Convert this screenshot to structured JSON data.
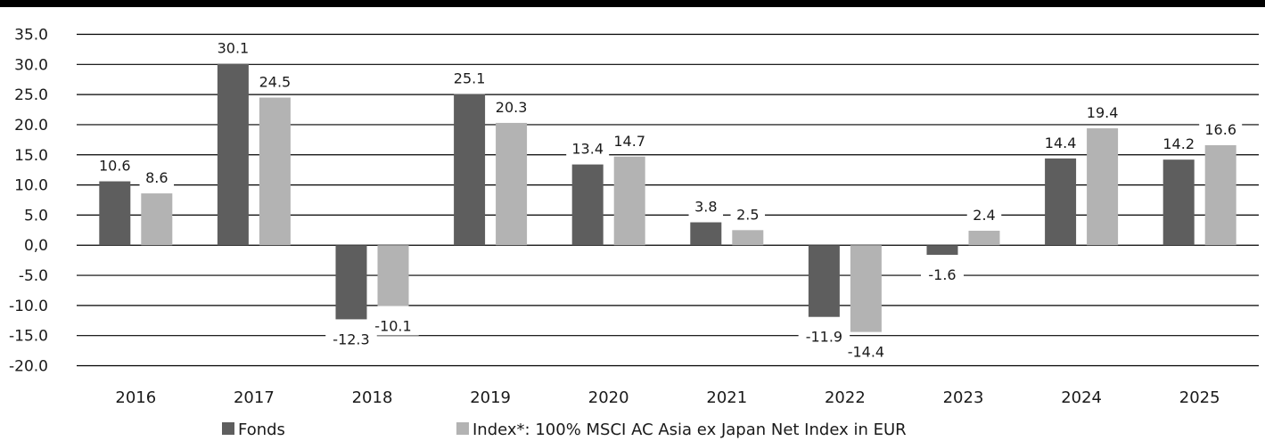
{
  "chart_data": {
    "type": "bar",
    "categories": [
      "2016",
      "2017",
      "2018",
      "2019",
      "2020",
      "2021",
      "2022",
      "2023",
      "2024",
      "2025"
    ],
    "series": [
      {
        "name": "Fonds",
        "color": "#5e5e5e",
        "values": [
          10.6,
          30.1,
          -12.3,
          25.1,
          13.4,
          3.8,
          -11.9,
          -1.6,
          14.4,
          14.2
        ]
      },
      {
        "name": "Index*: 100% MSCI AC Asia ex Japan Net Index in EUR",
        "color": "#b3b3b3",
        "values": [
          8.6,
          24.5,
          -10.1,
          20.3,
          14.7,
          2.5,
          -14.4,
          2.4,
          19.4,
          16.6
        ]
      }
    ],
    "y_ticks": [
      "35.0",
      "30.0",
      "25.0",
      "20.0",
      "15.0",
      "10.0",
      "5.0",
      "0,0",
      "-5.0",
      "-10.0",
      "-15.0",
      "-20.0"
    ],
    "ylim": [
      -20,
      35
    ],
    "grid": true,
    "legend_position": "bottom"
  }
}
